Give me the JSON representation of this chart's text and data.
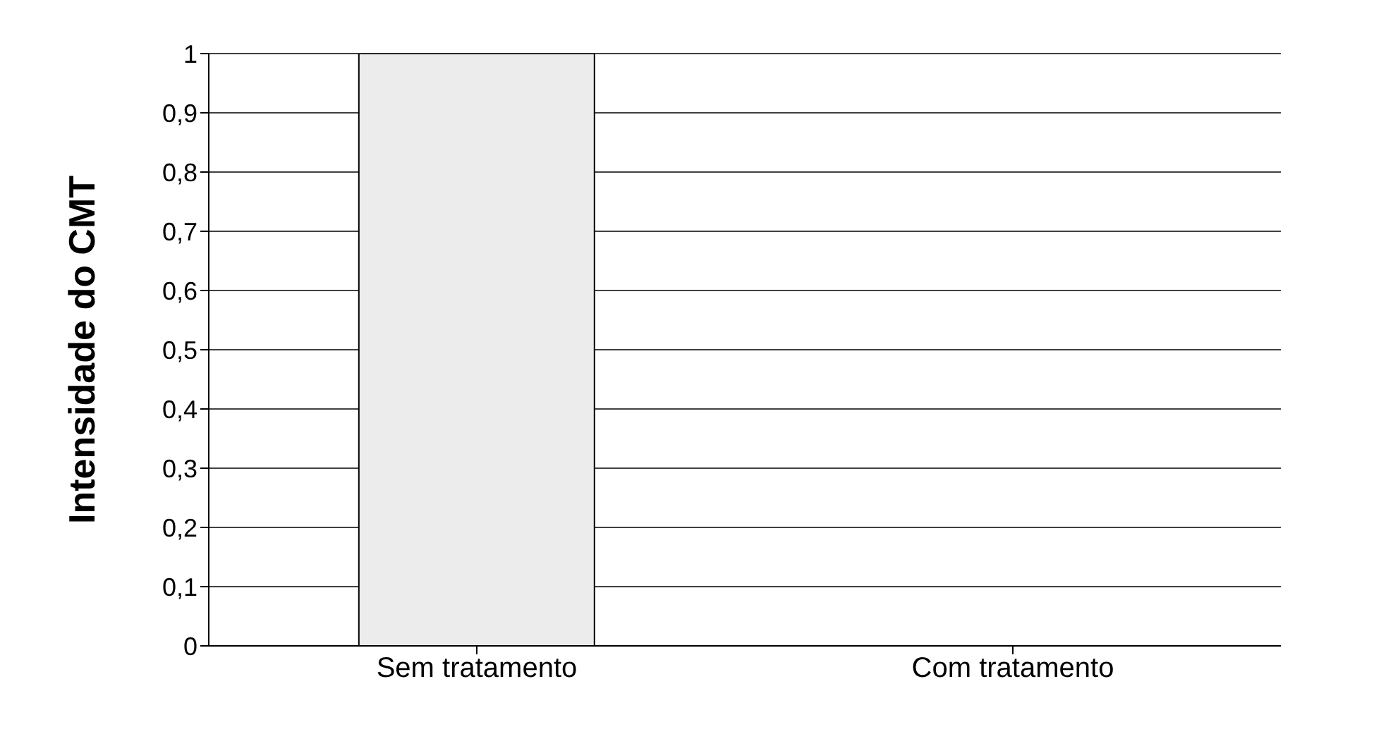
{
  "chart_data": {
    "type": "bar",
    "ylabel": "Intensidade do CMT",
    "categories": [
      "Sem tratamento",
      "Com tratamento"
    ],
    "series": [
      {
        "color": "#ececec",
        "values": [
          1,
          0
        ]
      }
    ],
    "ylim": [
      0,
      1
    ],
    "yticks": [
      0,
      {
        "value": 0.1,
        "label": "0,1"
      },
      {
        "value": 0.2,
        "label": "0,2"
      },
      {
        "value": 0.3,
        "label": "0,3"
      },
      {
        "value": 0.4,
        "label": "0,4"
      },
      {
        "value": 0.5,
        "label": "0,5"
      },
      {
        "value": 0.6,
        "label": "0,6"
      },
      {
        "value": 0.7,
        "label": "0,7"
      },
      {
        "value": 0.8,
        "label": "0,8"
      },
      {
        "value": 0.9,
        "label": "0,9"
      },
      1
    ],
    "grid": "y",
    "legend": false
  }
}
